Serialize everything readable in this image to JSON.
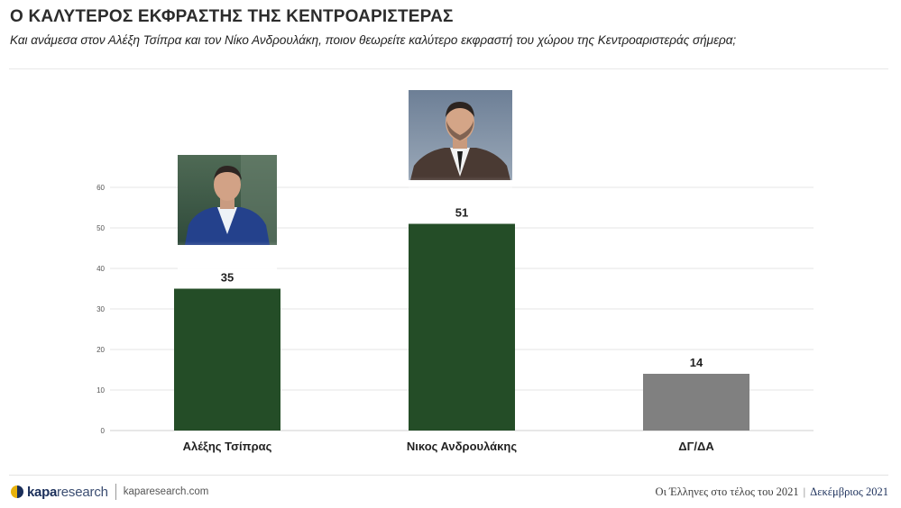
{
  "header": {
    "title": "Ο ΚΑΛΥΤΕΡΟΣ ΕΚΦΡΑΣΤΗΣ ΤΗΣ ΚΕΝΤΡΟΑΡΙΣΤΕΡΑΣ",
    "subtitle": "Και ανάμεσα στον Αλέξη Τσίπρα και τον Νίκο Ανδρουλάκη, ποιον θεωρείτε καλύτερο εκφραστή του χώρου της Κεντροαριστεράς σήμερα;"
  },
  "chart_data": {
    "type": "bar",
    "title": "Ο ΚΑΛΥΤΕΡΟΣ ΕΚΦΡΑΣΤΗΣ ΤΗΣ ΚΕΝΤΡΟΑΡΙΣΤΕΡΑΣ",
    "subtitle": "Και ανάμεσα στον Αλέξη Τσίπρα και τον Νίκο Ανδρουλάκη, ποιον θεωρείτε καλύτερο εκφραστή του χώρου της Κεντροαριστεράς σήμερα;",
    "categories": [
      "Αλέξης Τσίπρας",
      "Νικος Ανδρουλάκης",
      "ΔΓ/ΔΑ"
    ],
    "values": [
      35,
      51,
      14
    ],
    "data_labels": [
      "35",
      "51",
      "14"
    ],
    "bar_colors": [
      "#244d27",
      "#244d27",
      "#808080"
    ],
    "ylim": [
      0,
      60
    ],
    "yticks": [
      0,
      10,
      20,
      30,
      40,
      50,
      60
    ],
    "xlabel": "",
    "ylabel": "",
    "grid": true,
    "legend": "none"
  },
  "footer": {
    "brand_prefix": "kapa",
    "brand_suffix": "research",
    "url": "kaparesearch.com",
    "report_title": "Οι Έλληνες στο τέλος του 2021",
    "separator": "|",
    "date": "Δεκέμβριος 2021"
  },
  "colors": {
    "bar_primary": "#244d27",
    "bar_other": "#808080",
    "grid": "#e6e6e6",
    "brand_navy": "#1b2f5a",
    "brand_yellow": "#e8b20c"
  }
}
